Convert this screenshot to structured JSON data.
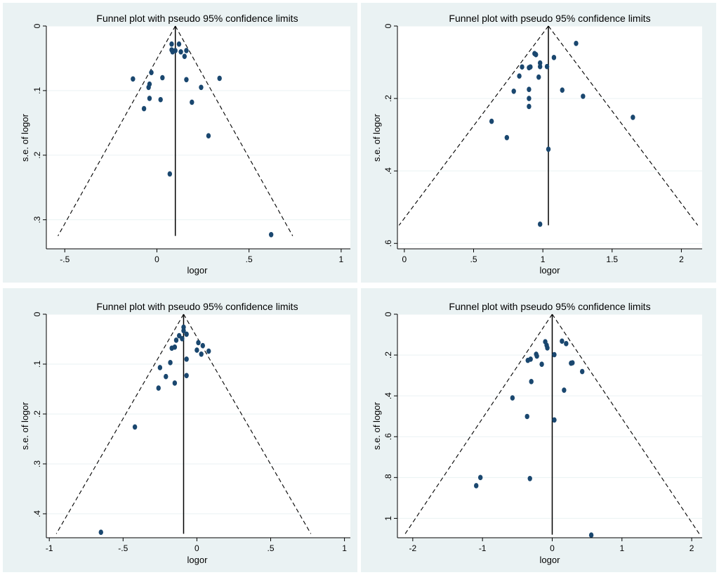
{
  "colors": {
    "panel_background": "#eaf2f3",
    "plot_background": "#ffffff",
    "marker": "#1a476f",
    "lines": "#000000"
  },
  "chart_data": [
    {
      "type": "scatter",
      "subtype": "funnel",
      "title": "Funnel plot with pseudo 95% confidence limits",
      "xlabel": "logor",
      "ylabel": "s.e. of logor",
      "xlim": [
        -0.6,
        1.05
      ],
      "ylim": [
        0,
        0.345
      ],
      "y_reversed": true,
      "xticks": [
        -0.5,
        0,
        0.5,
        1
      ],
      "xtick_labels": [
        "-.5",
        "0",
        ".5",
        "1"
      ],
      "yticks": [
        0,
        0.1,
        0.2,
        0.3
      ],
      "ytick_labels": [
        "0",
        ".1",
        ".2",
        ".3"
      ],
      "pooled_estimate": 0.1,
      "funnel_se_max": 0.325,
      "points": [
        {
          "x": 0.08,
          "y": 0.028
        },
        {
          "x": 0.12,
          "y": 0.028
        },
        {
          "x": 0.08,
          "y": 0.037
        },
        {
          "x": 0.1,
          "y": 0.038
        },
        {
          "x": 0.085,
          "y": 0.04
        },
        {
          "x": 0.13,
          "y": 0.04
        },
        {
          "x": 0.16,
          "y": 0.038
        },
        {
          "x": 0.15,
          "y": 0.047
        },
        {
          "x": -0.03,
          "y": 0.072
        },
        {
          "x": -0.13,
          "y": 0.082
        },
        {
          "x": 0.03,
          "y": 0.08
        },
        {
          "x": 0.16,
          "y": 0.083
        },
        {
          "x": 0.34,
          "y": 0.081
        },
        {
          "x": -0.04,
          "y": 0.09
        },
        {
          "x": -0.045,
          "y": 0.095
        },
        {
          "x": 0.24,
          "y": 0.095
        },
        {
          "x": -0.04,
          "y": 0.112
        },
        {
          "x": 0.02,
          "y": 0.114
        },
        {
          "x": 0.19,
          "y": 0.118
        },
        {
          "x": -0.07,
          "y": 0.128
        },
        {
          "x": 0.28,
          "y": 0.17
        },
        {
          "x": 0.07,
          "y": 0.229
        },
        {
          "x": 0.62,
          "y": 0.323
        }
      ]
    },
    {
      "type": "scatter",
      "subtype": "funnel",
      "title": "Funnel plot with pseudo 95% confidence limits",
      "xlabel": "logor",
      "ylabel": "s.e. of logor",
      "xlim": [
        -0.05,
        2.15
      ],
      "ylim": [
        0,
        0.615
      ],
      "y_reversed": true,
      "xticks": [
        0,
        0.5,
        1,
        1.5,
        2
      ],
      "xtick_labels": [
        "0",
        ".5",
        "1",
        "1.5",
        "2"
      ],
      "yticks": [
        0,
        0.2,
        0.4,
        0.6
      ],
      "ytick_labels": [
        "0",
        ".2",
        ".4",
        ".6"
      ],
      "pooled_estimate": 1.04,
      "funnel_se_max": 0.55,
      "points": [
        {
          "x": 1.24,
          "y": 0.048
        },
        {
          "x": 0.94,
          "y": 0.076
        },
        {
          "x": 0.95,
          "y": 0.079
        },
        {
          "x": 1.08,
          "y": 0.087
        },
        {
          "x": 0.98,
          "y": 0.102
        },
        {
          "x": 0.85,
          "y": 0.113
        },
        {
          "x": 0.9,
          "y": 0.115
        },
        {
          "x": 0.91,
          "y": 0.113
        },
        {
          "x": 0.98,
          "y": 0.112
        },
        {
          "x": 1.03,
          "y": 0.112
        },
        {
          "x": 0.83,
          "y": 0.138
        },
        {
          "x": 0.97,
          "y": 0.141
        },
        {
          "x": 0.9,
          "y": 0.175
        },
        {
          "x": 0.79,
          "y": 0.18
        },
        {
          "x": 1.14,
          "y": 0.177
        },
        {
          "x": 1.29,
          "y": 0.194
        },
        {
          "x": 0.9,
          "y": 0.2
        },
        {
          "x": 0.9,
          "y": 0.222
        },
        {
          "x": 0.63,
          "y": 0.263
        },
        {
          "x": 1.65,
          "y": 0.252
        },
        {
          "x": 0.74,
          "y": 0.308
        },
        {
          "x": 1.04,
          "y": 0.34
        },
        {
          "x": 0.98,
          "y": 0.547
        }
      ]
    },
    {
      "type": "scatter",
      "subtype": "funnel",
      "title": "Funnel plot with pseudo 95% confidence limits",
      "xlabel": "logor",
      "ylabel": "s.e. of logor",
      "xlim": [
        -1.02,
        1.04
      ],
      "ylim": [
        0,
        0.448
      ],
      "y_reversed": true,
      "xticks": [
        -1,
        -0.5,
        0,
        0.5,
        1
      ],
      "xtick_labels": [
        "-1",
        "-.5",
        "0",
        ".5",
        "1"
      ],
      "yticks": [
        0,
        0.1,
        0.2,
        0.3,
        0.4
      ],
      "ytick_labels": [
        "0",
        ".1",
        ".2",
        ".3",
        ".4"
      ],
      "pooled_estimate": -0.09,
      "funnel_se_max": 0.44,
      "points": [
        {
          "x": -0.09,
          "y": 0.026
        },
        {
          "x": -0.09,
          "y": 0.033
        },
        {
          "x": -0.07,
          "y": 0.04
        },
        {
          "x": -0.12,
          "y": 0.043
        },
        {
          "x": -0.1,
          "y": 0.049
        },
        {
          "x": -0.14,
          "y": 0.052
        },
        {
          "x": 0.01,
          "y": 0.057
        },
        {
          "x": 0.04,
          "y": 0.063
        },
        {
          "x": -0.15,
          "y": 0.066
        },
        {
          "x": -0.17,
          "y": 0.068
        },
        {
          "x": 0.0,
          "y": 0.072
        },
        {
          "x": 0.08,
          "y": 0.074
        },
        {
          "x": 0.03,
          "y": 0.08
        },
        {
          "x": -0.07,
          "y": 0.09
        },
        {
          "x": -0.18,
          "y": 0.097
        },
        {
          "x": -0.25,
          "y": 0.107
        },
        {
          "x": -0.07,
          "y": 0.123
        },
        {
          "x": -0.21,
          "y": 0.125
        },
        {
          "x": -0.15,
          "y": 0.138
        },
        {
          "x": -0.26,
          "y": 0.148
        },
        {
          "x": -0.42,
          "y": 0.226
        },
        {
          "x": -0.65,
          "y": 0.437
        }
      ]
    },
    {
      "type": "scatter",
      "subtype": "funnel",
      "title": "Funnel plot with pseudo 95% confidence limits",
      "xlabel": "logor",
      "ylabel": "s.e. of logor",
      "xlim": [
        -2.22,
        2.15
      ],
      "ylim": [
        0,
        1.095
      ],
      "y_reversed": true,
      "xticks": [
        -2,
        -1,
        0,
        1,
        2
      ],
      "xtick_labels": [
        "-2",
        "-1",
        "0",
        "1",
        "2"
      ],
      "yticks": [
        0,
        0.2,
        0.4,
        0.6,
        0.8,
        1
      ],
      "ytick_labels": [
        "0",
        ".2",
        ".4",
        ".6",
        ".8",
        "1"
      ],
      "pooled_estimate": 0,
      "funnel_se_max": 1.08,
      "points": [
        {
          "x": -0.1,
          "y": 0.135
        },
        {
          "x": 0.14,
          "y": 0.132
        },
        {
          "x": 0.2,
          "y": 0.144
        },
        {
          "x": -0.08,
          "y": 0.152
        },
        {
          "x": -0.07,
          "y": 0.165
        },
        {
          "x": -0.23,
          "y": 0.196
        },
        {
          "x": -0.22,
          "y": 0.205
        },
        {
          "x": 0.03,
          "y": 0.198
        },
        {
          "x": -0.35,
          "y": 0.226
        },
        {
          "x": -0.31,
          "y": 0.22
        },
        {
          "x": 0.27,
          "y": 0.24
        },
        {
          "x": 0.29,
          "y": 0.238
        },
        {
          "x": -0.15,
          "y": 0.245
        },
        {
          "x": 0.43,
          "y": 0.281
        },
        {
          "x": -0.3,
          "y": 0.33
        },
        {
          "x": 0.17,
          "y": 0.372
        },
        {
          "x": -0.57,
          "y": 0.41
        },
        {
          "x": -0.36,
          "y": 0.501
        },
        {
          "x": 0.03,
          "y": 0.518
        },
        {
          "x": -1.03,
          "y": 0.8
        },
        {
          "x": -0.32,
          "y": 0.805
        },
        {
          "x": -1.09,
          "y": 0.84
        },
        {
          "x": 0.56,
          "y": 1.082
        }
      ]
    }
  ]
}
